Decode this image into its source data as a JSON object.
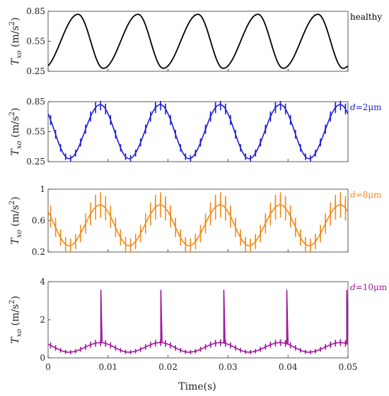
{
  "chart_data": [
    {
      "type": "line",
      "ylabel_main": "T",
      "ylabel_sub": "xo",
      "ylabel_unit": " (m/s",
      "ylabel_sup": "2",
      "ylabel_end": ")",
      "series_label_prefix": "",
      "series_label_suffix": "healthy",
      "color": "#000000",
      "xlim": [
        0,
        0.05
      ],
      "ylim": [
        0.25,
        0.85
      ],
      "yticks": [
        "0.25",
        "0.55",
        "0.85"
      ],
      "ytick_values": [
        0.25,
        0.55,
        0.85
      ],
      "period": 0.01,
      "min": 0.28,
      "max": 0.82,
      "peak_time": 0.005,
      "trough_time": 0.0092,
      "spike_amplitude": 0,
      "spike_count_per_period": 0,
      "big_spike_height": null
    },
    {
      "type": "line",
      "ylabel_main": "T",
      "ylabel_sub": "xo",
      "ylabel_unit": " (m/s",
      "ylabel_sup": "2",
      "ylabel_end": ")",
      "series_label_prefix": "d",
      "series_label_suffix": "=2μm",
      "color": "#1f1fd6",
      "xlim": [
        0,
        0.05
      ],
      "ylim": [
        0.25,
        0.85
      ],
      "yticks": [
        "0.25",
        "0.55",
        "0.85"
      ],
      "ytick_values": [
        0.25,
        0.55,
        0.85
      ],
      "period": 0.01,
      "min": 0.28,
      "max": 0.82,
      "peak_time": 0.0087,
      "trough_time": 0.0035,
      "spike_amplitude": 0.04,
      "spike_count_per_period": 12,
      "big_spike_height": null
    },
    {
      "type": "line",
      "ylabel_main": "T",
      "ylabel_sub": "xo",
      "ylabel_unit": " (m/s",
      "ylabel_sup": "2",
      "ylabel_end": ")",
      "series_label_prefix": "d",
      "series_label_suffix": "=8μm",
      "color": "#f28a1a",
      "xlim": [
        0,
        0.05
      ],
      "ylim": [
        0.2,
        1.0
      ],
      "yticks": [
        "0.2",
        "0.6",
        "1"
      ],
      "ytick_values": [
        0.2,
        0.6,
        1.0
      ],
      "period": 0.01,
      "min": 0.28,
      "max": 0.8,
      "peak_time": 0.0087,
      "trough_time": 0.0035,
      "spike_amplitude": 0.12,
      "spike_count_per_period": 12,
      "big_spike_height": null
    },
    {
      "type": "line",
      "ylabel_main": "T",
      "ylabel_sub": "xo",
      "ylabel_unit": " (m/s",
      "ylabel_sup": "2",
      "ylabel_end": ")",
      "series_label_prefix": "d",
      "series_label_suffix": "=10μm",
      "color": "#a0199b",
      "xlim": [
        0,
        0.05
      ],
      "ylim": [
        0,
        4
      ],
      "yticks": [
        "0",
        "2",
        "4"
      ],
      "ytick_values": [
        0,
        2,
        4
      ],
      "period": 0.01,
      "min": 0.3,
      "max": 0.8,
      "peak_time": 0.0087,
      "trough_time": 0.0035,
      "spike_amplitude": 0.12,
      "spike_count_per_period": 12,
      "big_spike_height": 3.55,
      "big_spike_times": [
        0.0088,
        0.0188,
        0.0293,
        0.0398,
        0.0498
      ]
    }
  ],
  "xaxis": {
    "ticks": [
      "0",
      "0.01",
      "0.02",
      "0.03",
      "0.04",
      "0.05"
    ],
    "tick_values": [
      0,
      0.01,
      0.02,
      0.03,
      0.04,
      0.05
    ],
    "label": "Time(s)"
  }
}
